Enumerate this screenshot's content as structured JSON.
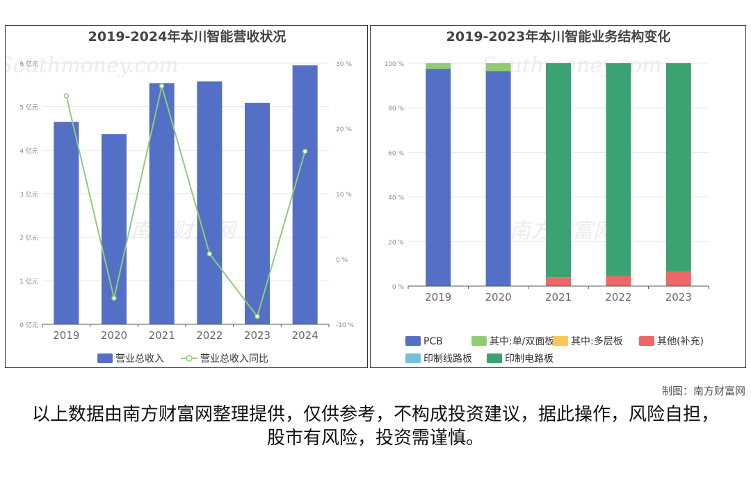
{
  "watermark": {
    "cn": "南方财富网",
    "en": "Southmoney.com"
  },
  "credit": "制图：南方财富网",
  "disclaimer": "以上数据由南方财富网整理提供，仅供参考，不构成投资建议，据此操作，风险自担，股市有风险，投资需谨慎。",
  "colors": {
    "bar": "#5470c6",
    "line": "#91cc75",
    "pcb": "#5470c6",
    "single_double": "#91cc75",
    "multilayer": "#fac858",
    "other": "#ee6666",
    "circuit_line": "#73c0de",
    "circuit_board": "#3ba272"
  },
  "chart_data": [
    {
      "type": "bar",
      "title": "2019-2024年本川智能营收状况",
      "categories": [
        "2019",
        "2020",
        "2021",
        "2022",
        "2023",
        "2024"
      ],
      "y_ticks": [
        "0 亿元",
        "1 亿元",
        "2 亿元",
        "3 亿元",
        "4 亿元",
        "5 亿元",
        "6 亿元"
      ],
      "y2_ticks": [
        "-10 %",
        "0 %",
        "10 %",
        "20 %",
        "30 %"
      ],
      "ylim": [
        0,
        6
      ],
      "y2lim": [
        -10,
        30
      ],
      "series": [
        {
          "name": "营业总收入",
          "type": "bar",
          "axis": "left",
          "values": [
            4.65,
            4.37,
            5.54,
            5.58,
            5.09,
            5.95
          ]
        },
        {
          "name": "营业总收入同比",
          "type": "line",
          "axis": "right",
          "values": [
            25.0,
            -6.0,
            26.5,
            0.8,
            -8.8,
            16.5
          ]
        }
      ],
      "legend_position": "bottom"
    },
    {
      "type": "bar",
      "stacked": true,
      "title": "2019-2023年本川智能业务结构变化",
      "categories": [
        "2019",
        "2020",
        "2021",
        "2022",
        "2023"
      ],
      "y_ticks": [
        "0 %",
        "20 %",
        "40 %",
        "60 %",
        "80 %",
        "100 %"
      ],
      "ylim": [
        0,
        100
      ],
      "series": [
        {
          "name": "PCB",
          "values": [
            97.5,
            96.5,
            0,
            0,
            0
          ]
        },
        {
          "name": "其中:单/双面板",
          "values": [
            2.5,
            3.5,
            0,
            0,
            0
          ]
        },
        {
          "name": "其中:多层板",
          "values": [
            0,
            0,
            0,
            0,
            0
          ]
        },
        {
          "name": "其他(补充)",
          "values": [
            0,
            0,
            4.0,
            4.5,
            6.5
          ]
        },
        {
          "name": "印制线路板",
          "values": [
            0,
            0,
            0,
            0,
            0
          ]
        },
        {
          "name": "印制电路板",
          "values": [
            0,
            0,
            96.0,
            95.5,
            93.5
          ]
        }
      ],
      "legend_position": "bottom"
    }
  ]
}
